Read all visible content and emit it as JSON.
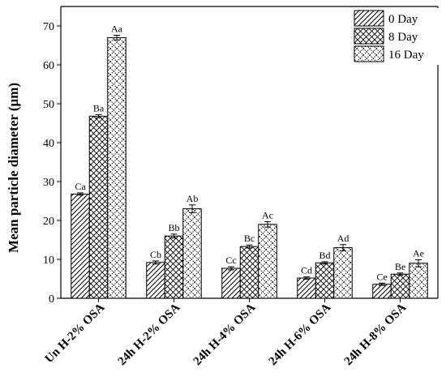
{
  "chart_data": {
    "type": "bar",
    "categories": [
      "Un H-2% OSA",
      "24h H-2% OSA",
      "24h H-4% OSA",
      "24h H-6% OSA",
      "24h H-8% OSA"
    ],
    "series": [
      {
        "name": "0 Day",
        "pattern": "diagonal",
        "values": [
          26.8,
          9.2,
          7.7,
          5.2,
          3.6
        ],
        "errors": [
          0.3,
          0.4,
          0.4,
          0.3,
          0.3
        ],
        "labels": [
          "Ca",
          "Cb",
          "Cc",
          "Cd",
          "Ce"
        ]
      },
      {
        "name": "8 Day",
        "pattern": "crosshatch",
        "values": [
          46.8,
          16.0,
          13.3,
          9.1,
          6.2
        ],
        "errors": [
          0.4,
          0.5,
          0.4,
          0.3,
          0.3
        ],
        "labels": [
          "Ba",
          "Bb",
          "Bc",
          "Bd",
          "Be"
        ]
      },
      {
        "name": "16 Day",
        "pattern": "checker",
        "values": [
          67.0,
          23.0,
          19.0,
          13.0,
          9.0
        ],
        "errors": [
          0.6,
          1.0,
          0.7,
          0.8,
          0.9
        ],
        "labels": [
          "Aa",
          "Ab",
          "Ac",
          "Ad",
          "Ae"
        ]
      }
    ],
    "ylabel": "Mean particle diameter (μm)",
    "xlabel": "",
    "ylim": [
      0,
      75
    ],
    "yticks": [
      0,
      10,
      20,
      30,
      40,
      50,
      60,
      70
    ],
    "legend_position": "top-right",
    "grid": false,
    "colors": {
      "stroke": "#000000",
      "background": "#ffffff"
    }
  }
}
